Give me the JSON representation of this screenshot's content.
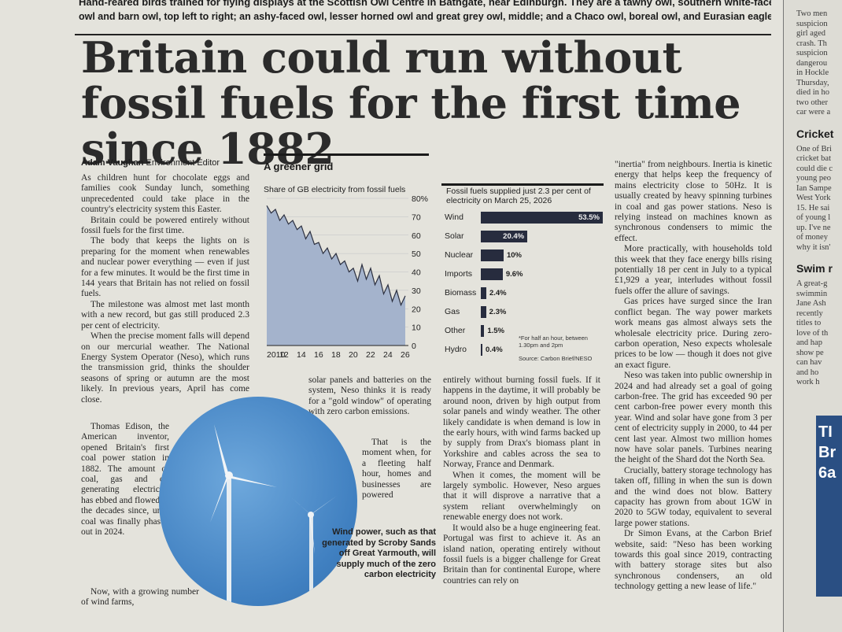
{
  "top_caption": {
    "line1": "Hand-reared birds trained for flying displays at the Scottish Owl Centre in Bathgate, near Edinburgh. They are a tawny owl, southern white-faced",
    "line2": "owl and barn owl, top left to right; an ashy-faced owl, lesser horned owl and great grey owl, middle; and a Chaco owl, boreal owl, and Eurasian eagle-owl, bottom"
  },
  "headline": "Britain could run without fossil fuels for the first time since 1882",
  "byline": {
    "name": "Adam Vaughan",
    "role": "Environment Editor"
  },
  "col1": [
    "As children hunt for chocolate eggs and families cook Sunday lunch, something unprecedented could take place in the country's electricity system this Easter.",
    "Britain could be powered entirely without fossil fuels for the first time.",
    "The body that keeps the lights on is preparing for the moment when renewables and nuclear power everything — even if just for a few minutes. It would be the first time in 144 years that Britain has not relied on fossil fuels.",
    "The milestone was almost met last month with a new record, but gas still produced 2.3 per cent of electricity.",
    "When the precise moment falls will depend on our mercurial weather. The National Energy System Operator (Neso), which runs the transmission grid, thinks the shoulder seasons of spring or autumn are the most likely. In previous years, April has come close.",
    "Thomas Edison, the American inventor, opened Britain's first coal power station in 1882. The amount of coal, gas and oil generating electricity has ebbed and flowed in the decades since, until coal was finally phased out in 2024.",
    "Now, with a growing number of wind farms,"
  ],
  "col2": [
    "solar panels and batteries on the system, Neso thinks it is ready for a \"gold window\" of operating with zero carbon emissions.",
    "That is the moment when, for a fleeting half hour, homes and businesses are powered"
  ],
  "col3": [
    "entirely without burning fossil fuels. If it happens in the daytime, it will probably be around noon, driven by high output from solar panels and windy weather. The other likely candidate is when demand is low in the early hours, with wind farms backed up by supply from Drax's biomass plant in Yorkshire and cables across the sea to Norway, France and Denmark.",
    "When it comes, the moment will be largely symbolic. However, Neso argues that it will disprove a narrative that a system reliant overwhelmingly on renewable energy does not work.",
    "It would also be a huge engineering feat. Portugal was first to achieve it. As an island nation, operating entirely without fossil fuels is a bigger challenge for Great Britain than for continental Europe, where countries can rely on"
  ],
  "col4": [
    "\"inertia\" from neighbours. Inertia is kinetic energy that helps keep the frequency of mains electricity close to 50Hz. It is usually created by heavy spinning turbines in coal and gas power stations. Neso is relying instead on machines known as synchronous condensers to mimic the effect.",
    "More practically, with households told this week that they face energy bills rising potentially 18 per cent in July to a typical £1,929 a year, interludes without fossil fuels offer the allure of savings.",
    "Gas prices have surged since the Iran conflict began. The way power markets work means gas almost always sets the wholesale electricity price. During zero-carbon operation, Neso expects wholesale prices to be low — though it does not give an exact figure.",
    "Neso was taken into public ownership in 2024 and had already set a goal of going carbon-free. The grid has exceeded 90 per cent carbon-free power every month this year. Wind and solar have gone from 3 per cent of electricity supply in 2000, to 44 per cent last year. Almost two million homes now have solar panels. Turbines nearing the height of the Shard dot the North Sea.",
    "Crucially, battery storage technology has taken off, filling in when the sun is down and the wind does not blow. Battery capacity has grown from about 1GW in 2020 to 5GW today, equivalent to several large power stations.",
    "Dr Simon Evans, at the Carbon Brief website, said: \"Neso has been working towards this goal since 2019, contracting with battery storage sites but also synchronous condensers, an old technology getting a new lease of life.\""
  ],
  "photo_caption": "Wind power, such as that generated by Scroby Sands off Great Yarmouth, will supply much of the zero carbon electricity",
  "chart_data": [
    {
      "type": "area",
      "title": "A greener grid",
      "subtitle": "Share of GB electricity from fossil fuels",
      "x_ticks": [
        "2010",
        "12",
        "14",
        "16",
        "18",
        "20",
        "22",
        "24",
        "26"
      ],
      "y_ticks": [
        "80%",
        "70",
        "60",
        "50",
        "40",
        "30",
        "20",
        "10",
        "0"
      ],
      "xlim": [
        2010,
        2026
      ],
      "ylim": [
        0,
        80
      ],
      "x": [
        2010,
        2010.5,
        2011,
        2011.5,
        2012,
        2012.5,
        2013,
        2013.5,
        2014,
        2014.5,
        2015,
        2015.5,
        2016,
        2016.5,
        2017,
        2017.5,
        2018,
        2018.5,
        2019,
        2019.5,
        2020,
        2020.5,
        2021,
        2021.5,
        2022,
        2022.5,
        2023,
        2023.5,
        2024,
        2024.5,
        2025,
        2025.5,
        2026
      ],
      "y": [
        76,
        72,
        74,
        68,
        71,
        66,
        68,
        63,
        65,
        58,
        62,
        55,
        56,
        50,
        53,
        47,
        50,
        44,
        46,
        40,
        42,
        35,
        44,
        36,
        42,
        33,
        38,
        28,
        33,
        24,
        30,
        22,
        27
      ],
      "area_color": "#a4b3cc",
      "line_color": "#2b2f3f"
    },
    {
      "type": "bar",
      "subtitle": "Fossil fuels supplied just 2.3 per cent of electricity on March 25, 2026",
      "categories": [
        "Wind",
        "Solar",
        "Nuclear",
        "Imports",
        "Biomass",
        "Gas",
        "Other",
        "Hydro"
      ],
      "values": [
        53.5,
        20.4,
        10,
        9.6,
        2.4,
        2.3,
        1.5,
        0.4
      ],
      "value_labels": [
        "53.5%",
        "20.4%",
        "10%",
        "9.6%",
        "2.4%",
        "2.3%",
        "1.5%",
        "0.4%"
      ],
      "xlim": [
        0,
        53.5
      ],
      "bar_color": "#272c3e",
      "footnote": "*For half an hour, between 1.30pm and 2pm",
      "source": "Source: Carbon Brief/NESO"
    }
  ],
  "sidebar": {
    "story1": [
      "Two men",
      "suspicion",
      "girl aged",
      "crash. Th",
      "suspicion",
      "dangerou",
      "in Hockle",
      "Thursday,",
      "died in ho",
      "two other",
      "car were a"
    ],
    "head2": "Cricket",
    "story2": [
      "One of Bri",
      "cricket bat",
      "could die c",
      "young peo",
      "Ian Sampe",
      "West York",
      "15. He sai",
      "of young l",
      "up. I've ne",
      "of money",
      "why it isn'"
    ],
    "head3": "Swim r",
    "story3": [
      "A great-g",
      "swimmin",
      "Jane Ash",
      "recently",
      "titles to",
      "love of th",
      "and hap",
      "show pe",
      "can hav",
      "and ho",
      "work h"
    ],
    "promo": [
      "TI",
      "Br",
      "6a"
    ]
  }
}
